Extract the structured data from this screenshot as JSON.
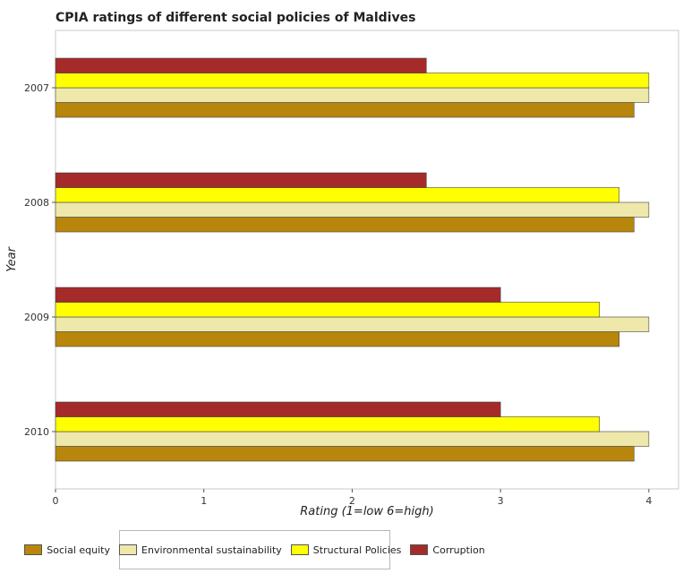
{
  "chart_data": {
    "type": "bar",
    "orientation": "horizontal",
    "title": "CPIA ratings of different social policies of Maldives",
    "xlabel": "Rating (1=low 6=high)",
    "ylabel": "Year",
    "categories": [
      "2007",
      "2008",
      "2009",
      "2010"
    ],
    "xlim": [
      0,
      4.2
    ],
    "xticks": [
      "0",
      "1",
      "2",
      "3",
      "4"
    ],
    "grid": false,
    "legend_position": "bottom",
    "series": [
      {
        "name": "Social equity",
        "color": "#b8860b",
        "values": [
          3.9,
          3.9,
          3.8,
          3.9
        ]
      },
      {
        "name": "Environmental sustainability",
        "color": "#eee8aa",
        "values": [
          4.0,
          4.0,
          4.0,
          4.0
        ]
      },
      {
        "name": "Structural Policies",
        "color": "#ffff00",
        "values": [
          4.0,
          3.8,
          3.667,
          3.667
        ]
      },
      {
        "name": "Corruption",
        "color": "#a52a2a",
        "values": [
          2.5,
          2.5,
          3.0,
          3.0
        ]
      }
    ]
  }
}
